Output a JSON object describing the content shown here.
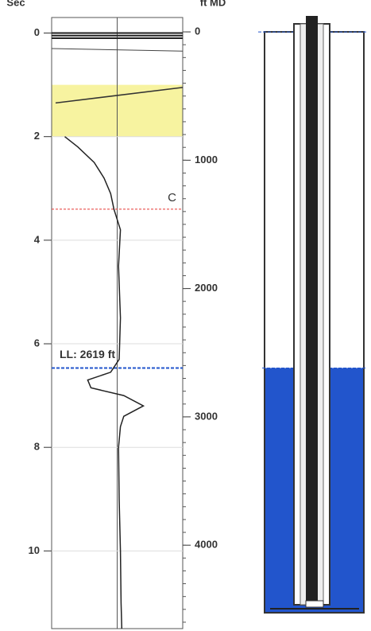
{
  "chart_data": {
    "type": "line",
    "orientation": "vertical",
    "y_label": "Sec",
    "y2_label": "ft MD",
    "ylim": [
      -0.3,
      11.5
    ],
    "yticks": [
      0,
      2,
      4,
      6,
      8,
      10
    ],
    "y2lim": [
      -112,
      4650
    ],
    "y2ticks": [
      0,
      1000,
      2000,
      3000,
      4000
    ],
    "xlim": [
      -1,
      1
    ],
    "highlight": [
      1.0,
      2.0
    ],
    "highlight_color": "#f7f3a0",
    "collar": {
      "value": 3.4,
      "label": "C",
      "color": "#e53935"
    },
    "fluid_level": {
      "value": 2619,
      "label": "LL: 2619 ft",
      "color": "#2255cc"
    },
    "series": [
      {
        "color": "#222222",
        "y": [
          2.0,
          2.2,
          2.5,
          2.8,
          3.1,
          3.4,
          3.8,
          4.5,
          5.5,
          6.3,
          6.55,
          6.7,
          6.85,
          7.0,
          7.2,
          7.4,
          7.6,
          8.0,
          9.0,
          10.0,
          11.0,
          11.5
        ],
        "values": [
          -0.8,
          -0.6,
          -0.35,
          -0.2,
          -0.1,
          -0.05,
          0.05,
          0.02,
          0.05,
          0.03,
          -0.1,
          -0.45,
          -0.4,
          0.1,
          0.4,
          0.1,
          0.05,
          0.02,
          0.03,
          0.05,
          0.06,
          0.07
        ]
      }
    ]
  }
}
